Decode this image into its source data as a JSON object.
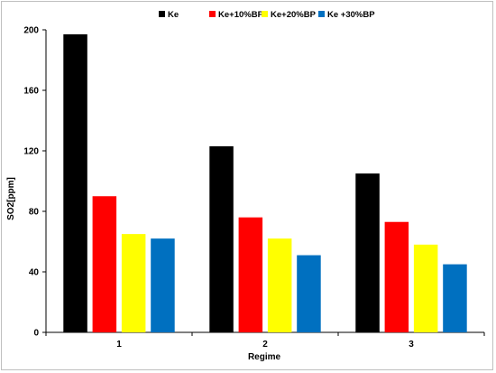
{
  "chart_data": {
    "type": "bar",
    "categories": [
      "1",
      "2",
      "3"
    ],
    "series": [
      {
        "name": "Ke",
        "color": "#000000",
        "values": [
          197,
          123,
          105
        ]
      },
      {
        "name": "Ke+10%BP",
        "color": "#ff0000",
        "values": [
          90,
          76,
          73
        ]
      },
      {
        "name": "Ke+20%BP",
        "color": "#ffff00",
        "values": [
          65,
          62,
          58
        ]
      },
      {
        "name": "Ke +30%BP",
        "color": "#0070c0",
        "values": [
          62,
          51,
          45
        ]
      }
    ],
    "xlabel": "Regime",
    "ylabel": "SO2[ppm]",
    "ylim": [
      0,
      200
    ],
    "yticks": [
      "0",
      "40",
      "80",
      "120",
      "160",
      "200"
    ],
    "grid": false,
    "legend_position": "top"
  }
}
